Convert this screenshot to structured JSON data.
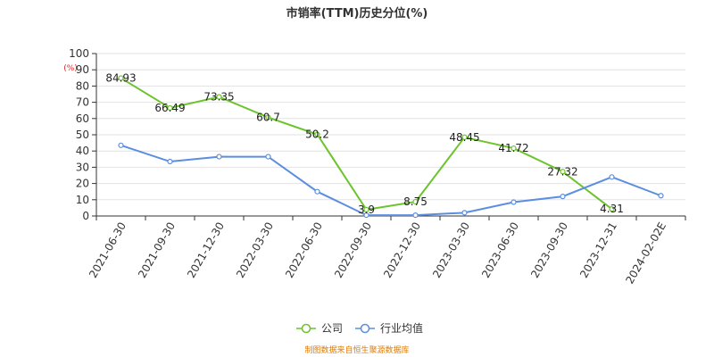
{
  "chart_data": {
    "type": "line",
    "title": "市销率(TTM)历史分位(%)",
    "y_unit": "(%)",
    "categories": [
      "2021-06-30",
      "2021-09-30",
      "2021-12-30",
      "2022-03-30",
      "2022-06-30",
      "2022-09-30",
      "2022-12-30",
      "2023-03-30",
      "2023-06-30",
      "2023-09-30",
      "2023-12-31",
      "2024-02-02E"
    ],
    "ylim": [
      0,
      100
    ],
    "yticks": [
      0,
      10,
      20,
      30,
      40,
      50,
      60,
      70,
      80,
      90,
      100
    ],
    "grid": true,
    "legend_position": "bottom",
    "series": [
      {
        "name": "公司",
        "color": "#6cc42c",
        "values": [
          84.93,
          66.49,
          73.35,
          60.7,
          50.2,
          3.9,
          8.75,
          48.45,
          41.72,
          27.32,
          4.31,
          null
        ],
        "labels": [
          "84.93",
          "66.49",
          "73.35",
          "60.7",
          "50.2",
          "3.9",
          "8.75",
          "48.45",
          "41.72",
          "27.32",
          "4.31",
          null
        ]
      },
      {
        "name": "行业均值",
        "color": "#5b8ee0",
        "values": [
          43.5,
          33.5,
          36.5,
          36.5,
          15,
          0.5,
          0.5,
          2,
          8.5,
          12,
          24,
          12.5
        ]
      }
    ],
    "source": "制图数据来自恒生聚源数据库",
    "source_color": "#e07b00",
    "unit_color": "#e02020"
  }
}
